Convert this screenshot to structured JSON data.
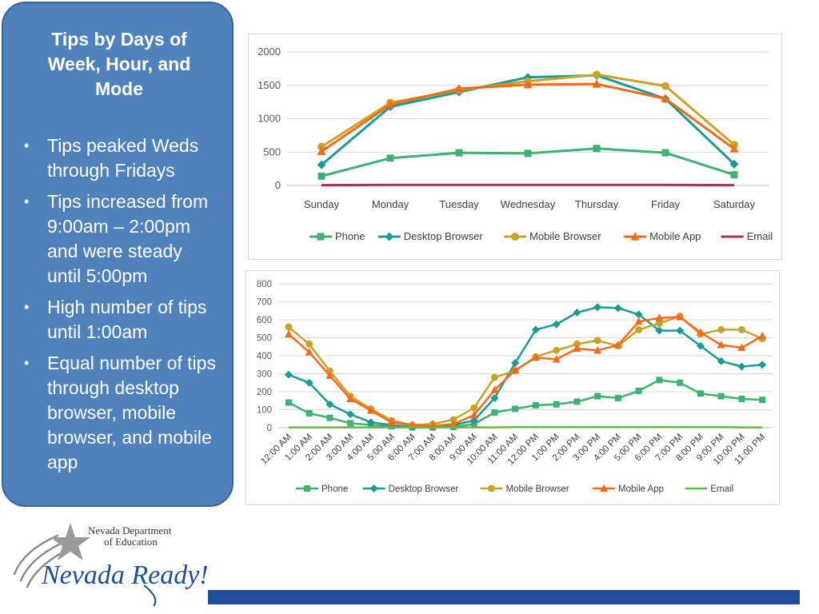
{
  "panel": {
    "title": "Tips by Days of Week, Hour, and Mode",
    "bullets": [
      "Tips peaked Weds through Fridays",
      "Tips increased from 9:00am – 2:00pm and were steady until 5:00pm",
      "High number of tips until 1:00am",
      "Equal number of tips through desktop browser, mobile browser, and mobile app"
    ]
  },
  "logo": {
    "org_line1": "Nevada Department",
    "org_line2": "of Education",
    "script_text": "Nevada Ready!"
  },
  "colors": {
    "panel_bg": "#4f81bd",
    "phone": "#3cb371",
    "desktop": "#1b9a96",
    "mobile_browser": "#c9a227",
    "mobile_app": "#f26b1d",
    "email_days": "#a8324a",
    "email_hours": "#66bb3c",
    "accent_bar": "#1f4e99"
  },
  "chart_data": [
    {
      "type": "line",
      "title": "",
      "categories": [
        "Sunday",
        "Monday",
        "Tuesday",
        "Wednesday",
        "Thursday",
        "Friday",
        "Saturday"
      ],
      "ylim": [
        0,
        2000
      ],
      "yticks": [
        0,
        500,
        1000,
        1500,
        2000
      ],
      "grid": true,
      "legend": "bottom",
      "series": [
        {
          "name": "Phone",
          "marker": "square",
          "values": [
            140,
            410,
            490,
            480,
            555,
            490,
            160
          ]
        },
        {
          "name": "Desktop Browser",
          "marker": "diamond",
          "values": [
            310,
            1180,
            1400,
            1620,
            1650,
            1300,
            320
          ]
        },
        {
          "name": "Mobile Browser",
          "marker": "circle",
          "values": [
            580,
            1240,
            1430,
            1560,
            1660,
            1490,
            610
          ]
        },
        {
          "name": "Mobile App",
          "marker": "triangle",
          "values": [
            510,
            1210,
            1450,
            1510,
            1520,
            1300,
            550
          ]
        },
        {
          "name": "Email",
          "marker": "none",
          "values": [
            5,
            8,
            8,
            8,
            10,
            8,
            5
          ]
        }
      ]
    },
    {
      "type": "line",
      "title": "",
      "categories": [
        "12:00 AM",
        "1:00 AM",
        "2:00 AM",
        "3:00 AM",
        "4:00 AM",
        "5:00 AM",
        "6:00 AM",
        "7:00 AM",
        "8:00 AM",
        "9:00 AM",
        "10:00 AM",
        "11:00 AM",
        "12:00 PM",
        "1:00 PM",
        "2:00 PM",
        "3:00 PM",
        "4:00 PM",
        "5:00 PM",
        "6:00 PM",
        "7:00 PM",
        "8:00 PM",
        "9:00 PM",
        "10:00 PM",
        "11:00 PM"
      ],
      "ylim": [
        0,
        800
      ],
      "yticks": [
        0,
        100,
        200,
        300,
        400,
        500,
        600,
        700,
        800
      ],
      "grid": true,
      "legend": "bottom",
      "series": [
        {
          "name": "Phone",
          "marker": "square",
          "values": [
            140,
            80,
            55,
            25,
            15,
            8,
            2,
            2,
            5,
            20,
            85,
            105,
            125,
            130,
            145,
            175,
            165,
            205,
            265,
            250,
            190,
            175,
            160,
            155
          ]
        },
        {
          "name": "Desktop Browser",
          "marker": "diamond",
          "values": [
            295,
            250,
            130,
            75,
            30,
            15,
            5,
            5,
            15,
            40,
            165,
            360,
            545,
            575,
            640,
            670,
            665,
            630,
            540,
            540,
            455,
            370,
            340,
            350
          ]
        },
        {
          "name": "Mobile Browser",
          "marker": "circle",
          "values": [
            560,
            465,
            315,
            175,
            105,
            40,
            15,
            20,
            45,
            110,
            280,
            315,
            395,
            430,
            465,
            485,
            455,
            545,
            580,
            620,
            520,
            545,
            545,
            495
          ]
        },
        {
          "name": "Mobile App",
          "marker": "triangle",
          "values": [
            520,
            420,
            290,
            160,
            95,
            30,
            15,
            10,
            20,
            70,
            210,
            320,
            390,
            380,
            440,
            430,
            460,
            590,
            610,
            615,
            530,
            460,
            445,
            510
          ]
        },
        {
          "name": "Email",
          "marker": "none",
          "values": [
            2,
            2,
            2,
            2,
            2,
            2,
            2,
            2,
            2,
            2,
            2,
            3,
            3,
            3,
            3,
            3,
            3,
            3,
            4,
            3,
            3,
            3,
            2,
            2
          ]
        }
      ]
    }
  ]
}
